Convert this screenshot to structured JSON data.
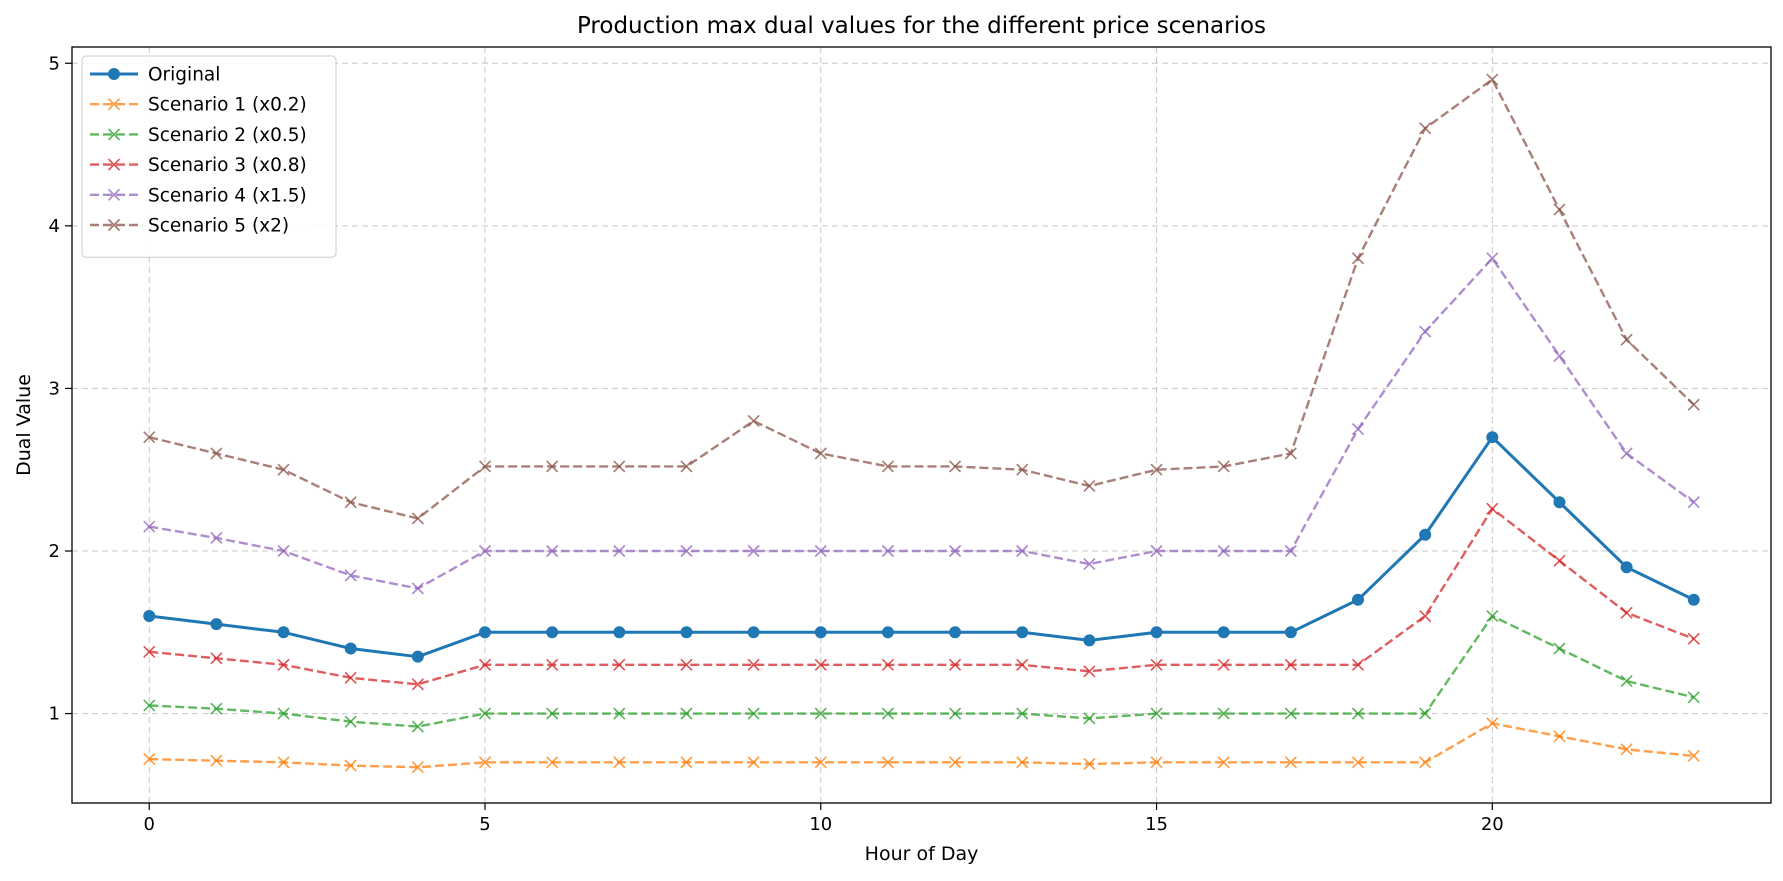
{
  "chart_data": {
    "type": "line",
    "title": "Production max dual values for the different price scenarios",
    "xlabel": "Hour of Day",
    "ylabel": "Dual Value",
    "xlim": [
      -1.15,
      24.15
    ],
    "ylim": [
      0.45,
      5.1
    ],
    "xticks": [
      0,
      5,
      10,
      15,
      20
    ],
    "yticks": [
      1,
      2,
      3,
      4,
      5
    ],
    "grid": true,
    "legend_position": "upper-left",
    "x": [
      0,
      1,
      2,
      3,
      4,
      5,
      6,
      7,
      8,
      9,
      10,
      11,
      12,
      13,
      14,
      15,
      16,
      17,
      18,
      19,
      20,
      21,
      22,
      23
    ],
    "series": [
      {
        "name": "Original",
        "color": "#1f77b4",
        "style": "solid",
        "marker": "circle",
        "values": [
          1.6,
          1.55,
          1.5,
          1.4,
          1.35,
          1.5,
          1.5,
          1.5,
          1.5,
          1.5,
          1.5,
          1.5,
          1.5,
          1.5,
          1.45,
          1.5,
          1.5,
          1.5,
          1.7,
          2.1,
          2.7,
          2.3,
          1.9,
          1.7
        ]
      },
      {
        "name": "Scenario 1 (x0.2)",
        "color": "#ff7f0e",
        "style": "dashed",
        "marker": "x",
        "values": [
          0.72,
          0.71,
          0.7,
          0.68,
          0.67,
          0.7,
          0.7,
          0.7,
          0.7,
          0.7,
          0.7,
          0.7,
          0.7,
          0.7,
          0.69,
          0.7,
          0.7,
          0.7,
          0.7,
          0.7,
          0.94,
          0.86,
          0.78,
          0.74
        ]
      },
      {
        "name": "Scenario 2 (x0.5)",
        "color": "#2ca02c",
        "style": "dashed",
        "marker": "x",
        "values": [
          1.05,
          1.03,
          1.0,
          0.95,
          0.92,
          1.0,
          1.0,
          1.0,
          1.0,
          1.0,
          1.0,
          1.0,
          1.0,
          1.0,
          0.97,
          1.0,
          1.0,
          1.0,
          1.0,
          1.0,
          1.6,
          1.4,
          1.2,
          1.1
        ]
      },
      {
        "name": "Scenario 3 (x0.8)",
        "color": "#d62728",
        "style": "dashed",
        "marker": "x",
        "values": [
          1.38,
          1.34,
          1.3,
          1.22,
          1.18,
          1.3,
          1.3,
          1.3,
          1.3,
          1.3,
          1.3,
          1.3,
          1.3,
          1.3,
          1.26,
          1.3,
          1.3,
          1.3,
          1.3,
          1.6,
          2.26,
          1.94,
          1.62,
          1.46
        ]
      },
      {
        "name": "Scenario 4 (x1.5)",
        "color": "#9467bd",
        "style": "dashed",
        "marker": "x",
        "values": [
          2.15,
          2.08,
          2.0,
          1.85,
          1.77,
          2.0,
          2.0,
          2.0,
          2.0,
          2.0,
          2.0,
          2.0,
          2.0,
          2.0,
          1.92,
          2.0,
          2.0,
          2.0,
          2.75,
          3.35,
          3.8,
          3.2,
          2.6,
          2.3
        ]
      },
      {
        "name": "Scenario 5 (x2)",
        "color": "#8c564b",
        "style": "dashed",
        "marker": "x",
        "values": [
          2.7,
          2.6,
          2.5,
          2.3,
          2.2,
          2.52,
          2.52,
          2.52,
          2.52,
          2.8,
          2.6,
          2.52,
          2.52,
          2.5,
          2.4,
          2.5,
          2.52,
          2.6,
          3.8,
          4.6,
          4.9,
          4.1,
          3.3,
          2.9
        ]
      }
    ]
  }
}
